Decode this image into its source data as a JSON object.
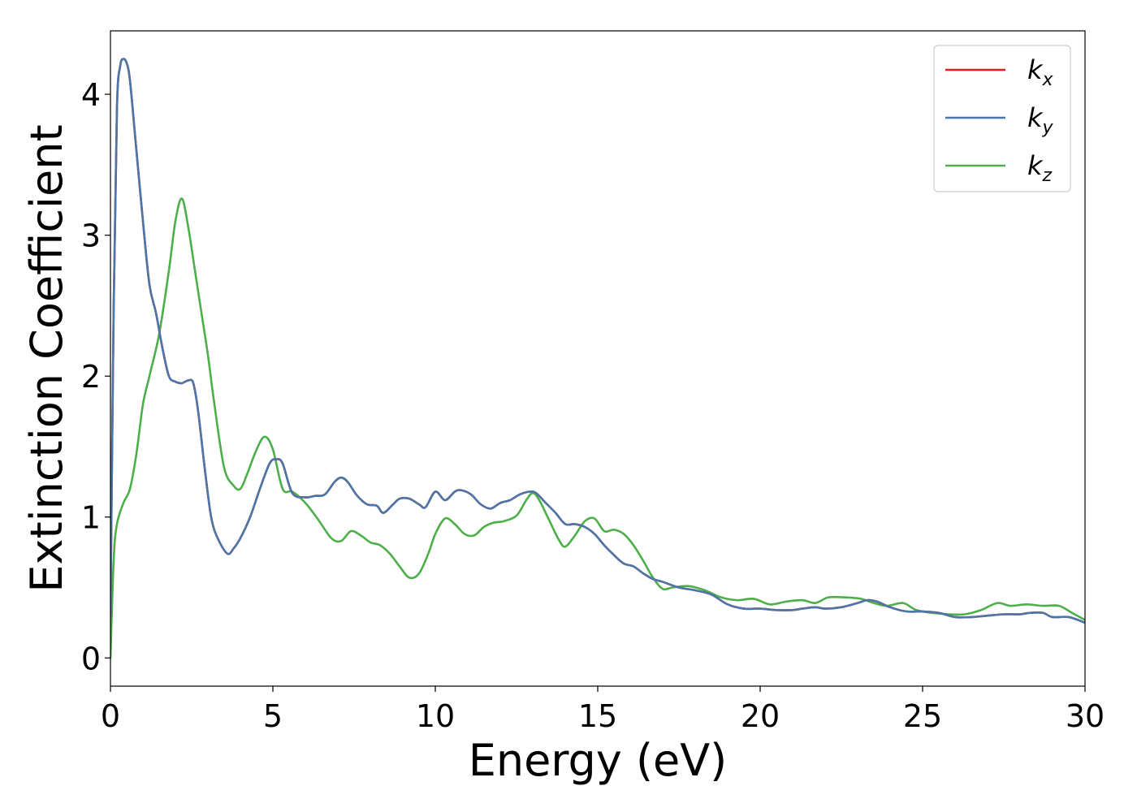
{
  "chart_data": {
    "type": "line",
    "title": "",
    "xlabel": "Energy (eV)",
    "ylabel": "Extinction Coefficient",
    "xlim": [
      0,
      30
    ],
    "ylim": [
      -0.2,
      4.45
    ],
    "xticks": [
      0,
      5,
      10,
      15,
      20,
      25,
      30
    ],
    "yticks": [
      0,
      1,
      2,
      3,
      4
    ],
    "grid": false,
    "legend_position": "top-right",
    "series": [
      {
        "name": "k",
        "subscript": "x",
        "color": "#e41a1c",
        "x": [
          0,
          0.1,
          0.2,
          0.3,
          0.4,
          0.5,
          0.6,
          0.8,
          1.0,
          1.2,
          1.4,
          1.6,
          1.8,
          2.0,
          2.2,
          2.4,
          2.55,
          2.7,
          2.9,
          3.1,
          3.3,
          3.6,
          3.8,
          4.0,
          4.3,
          4.6,
          4.9,
          5.1,
          5.3,
          5.6,
          6.0,
          6.3,
          6.6,
          6.9,
          7.1,
          7.3,
          7.6,
          7.9,
          8.2,
          8.4,
          8.7,
          8.9,
          9.2,
          9.5,
          9.7,
          10.0,
          10.3,
          10.6,
          10.8,
          11.1,
          11.4,
          11.7,
          12.0,
          12.3,
          12.6,
          12.9,
          13.1,
          13.4,
          13.7,
          14.0,
          14.3,
          14.6,
          14.9,
          15.2,
          15.5,
          15.8,
          16.1,
          16.4,
          16.7,
          17.0,
          17.5,
          18.0,
          18.5,
          19.0,
          19.5,
          20.0,
          20.5,
          21.0,
          21.3,
          21.7,
          22.0,
          22.5,
          23.0,
          23.3,
          23.6,
          24.0,
          24.5,
          25.0,
          25.5,
          26.0,
          26.5,
          27.0,
          27.5,
          28.0,
          28.3,
          28.7,
          29.0,
          29.5,
          30.0
        ],
        "y": [
          0.3,
          2.5,
          3.9,
          4.2,
          4.25,
          4.22,
          4.1,
          3.6,
          3.1,
          2.65,
          2.45,
          2.2,
          2.0,
          1.96,
          1.95,
          1.97,
          1.95,
          1.75,
          1.35,
          1.0,
          0.85,
          0.74,
          0.78,
          0.85,
          1.0,
          1.2,
          1.38,
          1.41,
          1.38,
          1.17,
          1.14,
          1.15,
          1.16,
          1.25,
          1.28,
          1.25,
          1.15,
          1.09,
          1.08,
          1.03,
          1.09,
          1.13,
          1.13,
          1.09,
          1.07,
          1.18,
          1.12,
          1.18,
          1.19,
          1.16,
          1.09,
          1.06,
          1.1,
          1.12,
          1.16,
          1.18,
          1.17,
          1.1,
          1.03,
          0.95,
          0.95,
          0.93,
          0.88,
          0.8,
          0.73,
          0.67,
          0.65,
          0.6,
          0.56,
          0.54,
          0.5,
          0.48,
          0.45,
          0.38,
          0.35,
          0.35,
          0.34,
          0.34,
          0.35,
          0.36,
          0.35,
          0.36,
          0.39,
          0.41,
          0.4,
          0.36,
          0.33,
          0.33,
          0.32,
          0.29,
          0.29,
          0.3,
          0.31,
          0.31,
          0.32,
          0.32,
          0.29,
          0.29,
          0.25
        ]
      },
      {
        "name": "k",
        "subscript": "y",
        "color": "#4b76a8",
        "x": [
          0,
          0.1,
          0.2,
          0.3,
          0.4,
          0.5,
          0.6,
          0.8,
          1.0,
          1.2,
          1.4,
          1.6,
          1.8,
          2.0,
          2.2,
          2.4,
          2.55,
          2.7,
          2.9,
          3.1,
          3.3,
          3.6,
          3.8,
          4.0,
          4.3,
          4.6,
          4.9,
          5.1,
          5.3,
          5.6,
          6.0,
          6.3,
          6.6,
          6.9,
          7.1,
          7.3,
          7.6,
          7.9,
          8.2,
          8.4,
          8.7,
          8.9,
          9.2,
          9.5,
          9.7,
          10.0,
          10.3,
          10.6,
          10.8,
          11.1,
          11.4,
          11.7,
          12.0,
          12.3,
          12.6,
          12.9,
          13.1,
          13.4,
          13.7,
          14.0,
          14.3,
          14.6,
          14.9,
          15.2,
          15.5,
          15.8,
          16.1,
          16.4,
          16.7,
          17.0,
          17.5,
          18.0,
          18.5,
          19.0,
          19.5,
          20.0,
          20.5,
          21.0,
          21.3,
          21.7,
          22.0,
          22.5,
          23.0,
          23.3,
          23.6,
          24.0,
          24.5,
          25.0,
          25.5,
          26.0,
          26.5,
          27.0,
          27.5,
          28.0,
          28.3,
          28.7,
          29.0,
          29.5,
          30.0
        ],
        "y": [
          0.3,
          2.5,
          3.9,
          4.2,
          4.25,
          4.22,
          4.1,
          3.6,
          3.1,
          2.65,
          2.45,
          2.2,
          2.0,
          1.96,
          1.95,
          1.97,
          1.95,
          1.75,
          1.35,
          1.0,
          0.85,
          0.74,
          0.78,
          0.85,
          1.0,
          1.2,
          1.38,
          1.41,
          1.38,
          1.17,
          1.14,
          1.15,
          1.16,
          1.25,
          1.28,
          1.25,
          1.15,
          1.09,
          1.08,
          1.03,
          1.09,
          1.13,
          1.13,
          1.09,
          1.07,
          1.18,
          1.12,
          1.18,
          1.19,
          1.16,
          1.09,
          1.06,
          1.1,
          1.12,
          1.16,
          1.18,
          1.17,
          1.1,
          1.03,
          0.95,
          0.95,
          0.93,
          0.88,
          0.8,
          0.73,
          0.67,
          0.65,
          0.6,
          0.56,
          0.54,
          0.5,
          0.48,
          0.45,
          0.38,
          0.35,
          0.35,
          0.34,
          0.34,
          0.35,
          0.36,
          0.35,
          0.36,
          0.39,
          0.41,
          0.4,
          0.36,
          0.33,
          0.33,
          0.32,
          0.29,
          0.29,
          0.3,
          0.31,
          0.31,
          0.32,
          0.32,
          0.29,
          0.29,
          0.25
        ]
      },
      {
        "name": "k",
        "subscript": "z",
        "color": "#4daf4a",
        "x": [
          0,
          0.1,
          0.2,
          0.4,
          0.6,
          0.8,
          1.0,
          1.2,
          1.5,
          1.8,
          2.0,
          2.2,
          2.4,
          2.6,
          2.8,
          3.0,
          3.2,
          3.5,
          3.8,
          4.0,
          4.2,
          4.5,
          4.75,
          5.0,
          5.3,
          5.6,
          6.0,
          6.4,
          6.8,
          7.1,
          7.4,
          7.7,
          8.0,
          8.3,
          8.6,
          8.9,
          9.2,
          9.5,
          9.8,
          10.0,
          10.3,
          10.6,
          10.9,
          11.2,
          11.5,
          11.8,
          12.1,
          12.5,
          12.8,
          13.0,
          13.2,
          13.5,
          13.8,
          14.0,
          14.3,
          14.6,
          14.9,
          15.2,
          15.5,
          15.8,
          16.1,
          16.4,
          16.7,
          17.0,
          17.3,
          17.8,
          18.3,
          18.8,
          19.3,
          19.8,
          20.3,
          20.8,
          21.3,
          21.7,
          22.1,
          22.6,
          23.1,
          23.5,
          23.9,
          24.4,
          24.8,
          25.3,
          25.8,
          26.3,
          26.8,
          27.3,
          27.7,
          28.2,
          28.7,
          29.2,
          29.6,
          30.0
        ],
        "y": [
          0.0,
          0.7,
          0.95,
          1.1,
          1.2,
          1.45,
          1.8,
          2.0,
          2.3,
          2.75,
          3.1,
          3.26,
          3.05,
          2.75,
          2.45,
          2.15,
          1.8,
          1.35,
          1.22,
          1.2,
          1.3,
          1.48,
          1.57,
          1.48,
          1.2,
          1.18,
          1.1,
          0.98,
          0.85,
          0.83,
          0.9,
          0.87,
          0.82,
          0.8,
          0.74,
          0.65,
          0.57,
          0.6,
          0.75,
          0.88,
          0.99,
          0.95,
          0.88,
          0.87,
          0.93,
          0.96,
          0.97,
          1.01,
          1.12,
          1.17,
          1.12,
          0.98,
          0.84,
          0.79,
          0.87,
          0.97,
          0.99,
          0.9,
          0.91,
          0.88,
          0.8,
          0.69,
          0.57,
          0.49,
          0.5,
          0.51,
          0.48,
          0.43,
          0.41,
          0.42,
          0.38,
          0.4,
          0.41,
          0.39,
          0.43,
          0.43,
          0.42,
          0.39,
          0.37,
          0.39,
          0.34,
          0.32,
          0.31,
          0.31,
          0.34,
          0.39,
          0.37,
          0.38,
          0.37,
          0.37,
          0.32,
          0.27
        ]
      }
    ]
  }
}
